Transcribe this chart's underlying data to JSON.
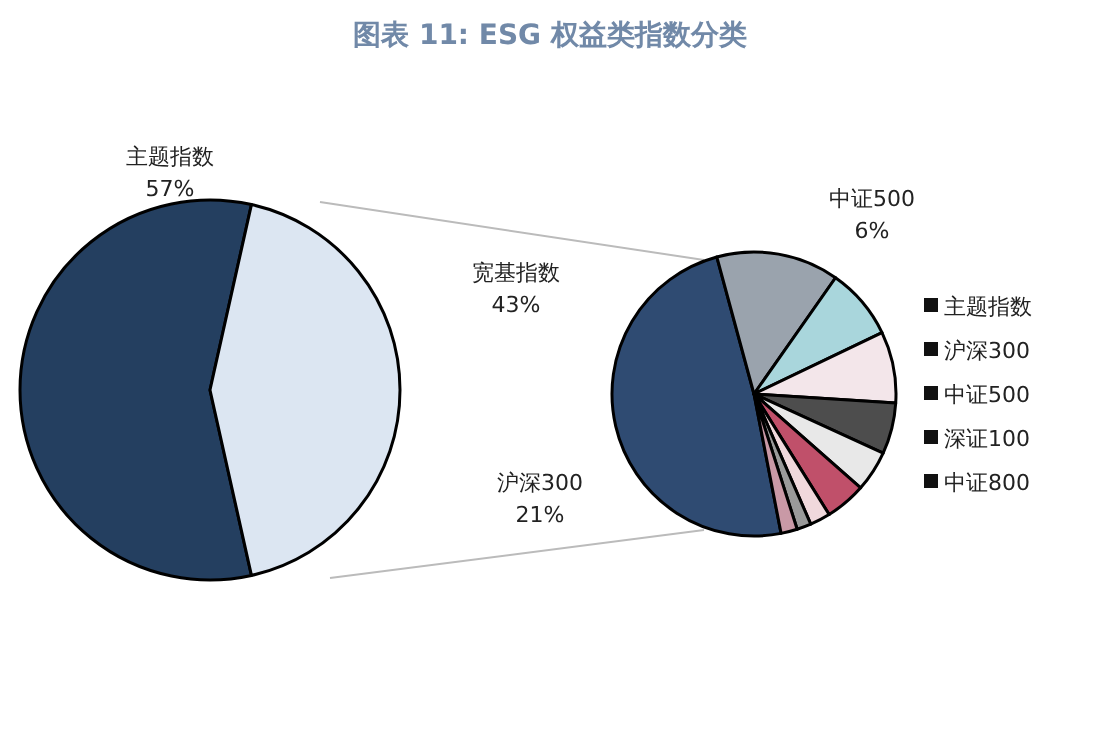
{
  "chart_data": [
    {
      "type": "pie",
      "title": "图表 11: ESG 权益类指数分类",
      "categories": [
        "主题指数",
        "宽基指数"
      ],
      "values": [
        57,
        43
      ],
      "colors": [
        "#243f60",
        "#dce6f2"
      ],
      "value_labels": [
        "57%",
        "43%"
      ]
    },
    {
      "type": "pie",
      "categories": [
        "沪深300",
        "中证500",
        null,
        null,
        null,
        null,
        null,
        null,
        null,
        null
      ],
      "values": [
        21,
        6,
        3.5,
        3.5,
        2.5,
        2,
        2,
        1,
        0.7,
        0.8
      ],
      "colors": [
        "#2f4b72",
        "#9aa3ad",
        "#a9d6dc",
        "#f3e6ea",
        "#4d4d4d",
        "#e8e8e8",
        "#c0506a",
        "#f0d8dc",
        "#9a9a9a",
        "#c999a6"
      ],
      "value_labels": [
        "21%",
        "6%",
        null,
        null,
        null,
        null,
        null,
        null,
        null,
        null
      ],
      "annotations": [
        "主题指数",
        "沪深300",
        "中证500",
        "深证100",
        "中证800"
      ]
    }
  ]
}
